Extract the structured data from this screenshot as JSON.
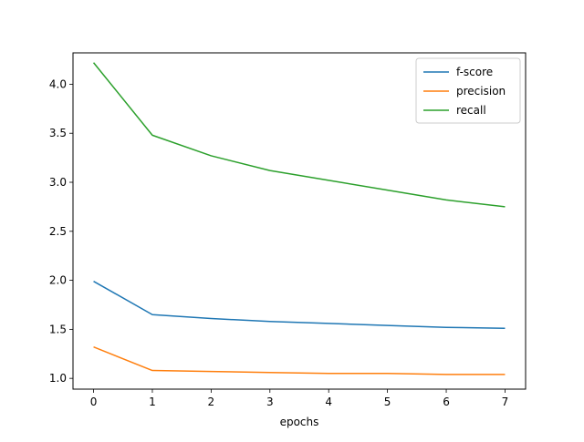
{
  "chart_data": {
    "type": "line",
    "title": "",
    "xlabel": "epochs",
    "ylabel": "",
    "x": [
      0,
      1,
      2,
      3,
      4,
      5,
      6,
      7
    ],
    "xlim": [
      -0.35,
      7.35
    ],
    "ylim": [
      0.89,
      4.32
    ],
    "xticks": [
      0,
      1,
      2,
      3,
      4,
      5,
      6,
      7
    ],
    "yticks": [
      1.0,
      1.5,
      2.0,
      2.5,
      3.0,
      3.5,
      4.0
    ],
    "ytick_labels": [
      "1.0",
      "1.5",
      "2.0",
      "2.5",
      "3.0",
      "3.5",
      "4.0"
    ],
    "grid": false,
    "legend_position": "top-right",
    "series": [
      {
        "name": "f-score",
        "color": "#1f77b4",
        "values": [
          1.99,
          1.65,
          1.61,
          1.58,
          1.56,
          1.54,
          1.52,
          1.51
        ]
      },
      {
        "name": "precision",
        "color": "#ff7f0e",
        "values": [
          1.32,
          1.08,
          1.07,
          1.06,
          1.05,
          1.05,
          1.04,
          1.04
        ]
      },
      {
        "name": "recall",
        "color": "#2ca02c",
        "values": [
          4.22,
          3.48,
          3.27,
          3.12,
          3.02,
          2.92,
          2.82,
          2.75
        ]
      }
    ]
  }
}
